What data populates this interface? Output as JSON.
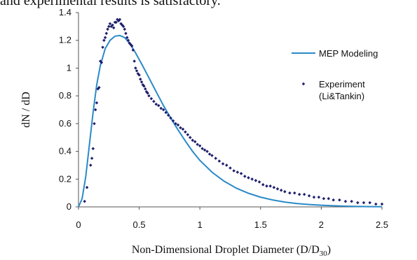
{
  "page": {
    "top_text": "and experimental results is satisfactory."
  },
  "chart_data": {
    "type": "scatter",
    "title": "",
    "xlabel": "Non-Dimensional Droplet Diameter (D/D",
    "xlabel_sub": "30",
    "xlabel_end": ")",
    "ylabel": "dN / dD",
    "xlim": [
      0,
      2.5
    ],
    "ylim": [
      0,
      1.4
    ],
    "xticks": [
      "0",
      "0.5",
      "1",
      "1.5",
      "2",
      "2.5"
    ],
    "yticks": [
      "0",
      "0.2",
      "0.4",
      "0.6",
      "0.8",
      "1",
      "1.2",
      "1.4"
    ],
    "grid": false,
    "legend_position": "right",
    "colors": {
      "model": "#2a8ac8",
      "experiment": "#1f1f6e"
    },
    "series": [
      {
        "name": "MEP Modeling",
        "type": "line",
        "x": [
          0,
          0.03,
          0.06,
          0.09,
          0.12,
          0.15,
          0.18,
          0.22,
          0.26,
          0.3,
          0.34,
          0.38,
          0.42,
          0.47,
          0.52,
          0.58,
          0.64,
          0.7,
          0.76,
          0.82,
          0.88,
          0.94,
          1.0,
          1.1,
          1.2,
          1.3,
          1.4,
          1.5,
          1.6,
          1.7,
          1.8,
          1.9,
          2.0,
          2.1,
          2.2,
          2.3,
          2.4,
          2.5
        ],
        "y": [
          0,
          0.06,
          0.22,
          0.45,
          0.68,
          0.88,
          1.02,
          1.14,
          1.2,
          1.23,
          1.235,
          1.22,
          1.18,
          1.11,
          1.03,
          0.93,
          0.83,
          0.73,
          0.64,
          0.555,
          0.475,
          0.4,
          0.335,
          0.25,
          0.185,
          0.135,
          0.098,
          0.07,
          0.05,
          0.035,
          0.024,
          0.017,
          0.012,
          0.008,
          0.005,
          0.003,
          0.002,
          0.001
        ]
      },
      {
        "name": "Experiment\n(Li&Tankin)",
        "legend_lines": [
          "Experiment",
          "(Li&Tankin)"
        ],
        "type": "scatter",
        "x": [
          0.05,
          0.07,
          0.1,
          0.11,
          0.12,
          0.13,
          0.14,
          0.15,
          0.16,
          0.17,
          0.18,
          0.19,
          0.2,
          0.21,
          0.22,
          0.23,
          0.24,
          0.25,
          0.26,
          0.27,
          0.28,
          0.29,
          0.3,
          0.31,
          0.32,
          0.33,
          0.34,
          0.35,
          0.36,
          0.37,
          0.38,
          0.39,
          0.4,
          0.41,
          0.42,
          0.43,
          0.44,
          0.45,
          0.46,
          0.47,
          0.48,
          0.49,
          0.5,
          0.51,
          0.52,
          0.53,
          0.54,
          0.55,
          0.56,
          0.57,
          0.58,
          0.6,
          0.62,
          0.64,
          0.66,
          0.68,
          0.7,
          0.72,
          0.74,
          0.76,
          0.78,
          0.8,
          0.82,
          0.84,
          0.86,
          0.88,
          0.9,
          0.92,
          0.94,
          0.96,
          0.98,
          1.0,
          1.02,
          1.04,
          1.06,
          1.08,
          1.1,
          1.13,
          1.16,
          1.19,
          1.22,
          1.25,
          1.28,
          1.31,
          1.34,
          1.37,
          1.4,
          1.43,
          1.46,
          1.49,
          1.52,
          1.55,
          1.58,
          1.61,
          1.64,
          1.67,
          1.7,
          1.74,
          1.78,
          1.82,
          1.86,
          1.9,
          1.94,
          1.98,
          2.02,
          2.06,
          2.1,
          2.15,
          2.2,
          2.25,
          2.3,
          2.35,
          2.4,
          2.45,
          2.5
        ],
        "y": [
          0.04,
          0.14,
          0.3,
          0.35,
          0.42,
          0.6,
          0.7,
          0.75,
          0.85,
          0.86,
          1.05,
          1.04,
          1.15,
          1.2,
          1.22,
          1.25,
          1.28,
          1.3,
          1.32,
          1.3,
          1.31,
          1.29,
          1.33,
          1.33,
          1.35,
          1.34,
          1.35,
          1.32,
          1.31,
          1.3,
          1.28,
          1.25,
          1.22,
          1.2,
          1.18,
          1.17,
          1.16,
          1.13,
          1.05,
          1.0,
          0.98,
          0.96,
          0.95,
          0.92,
          0.9,
          0.88,
          0.87,
          0.85,
          0.83,
          0.82,
          0.8,
          0.78,
          0.76,
          0.74,
          0.73,
          0.71,
          0.7,
          0.68,
          0.66,
          0.64,
          0.62,
          0.6,
          0.59,
          0.57,
          0.56,
          0.54,
          0.52,
          0.5,
          0.48,
          0.47,
          0.45,
          0.44,
          0.42,
          0.41,
          0.4,
          0.38,
          0.37,
          0.35,
          0.33,
          0.31,
          0.3,
          0.28,
          0.26,
          0.25,
          0.24,
          0.22,
          0.21,
          0.2,
          0.19,
          0.18,
          0.16,
          0.15,
          0.15,
          0.14,
          0.13,
          0.12,
          0.11,
          0.1,
          0.1,
          0.09,
          0.09,
          0.08,
          0.07,
          0.07,
          0.06,
          0.06,
          0.05,
          0.05,
          0.04,
          0.04,
          0.03,
          0.03,
          0.03,
          0.02,
          0.02
        ]
      }
    ]
  }
}
